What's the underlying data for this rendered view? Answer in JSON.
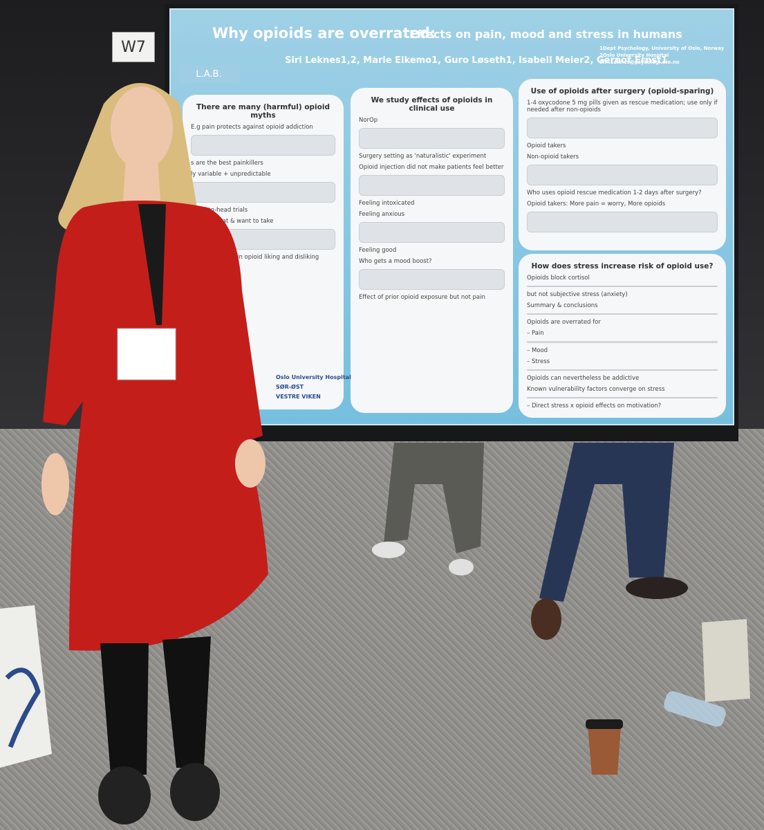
{
  "booth_label": "W7",
  "poster": {
    "title_main": "Why opioids are overrated:",
    "title_sub": "Effects on pain, mood and stress in humans",
    "authors": "Siri Leknes1,2, Marie Eikemo1, Guro Løseth1, Isabell Meier2, Gernot Ernst1",
    "affiliations": [
      "1Dept Psychology, University of Oslo, Norway",
      "2Oslo University Hospital",
      "Siri.Leknes@psykologi.uio.no"
    ],
    "lab_logo": "L.A.B.",
    "panels": [
      {
        "heading": "There are many (harmful) opioid myths",
        "lines": [
          "E.g pain protects against opioid addiction",
          "s are the best painkillers",
          "ly variable + unpredictable",
          "Head-to-head trials",
          "ou feel great & want to take",
          "High variability in opioid liking and disliking"
        ]
      },
      {
        "heading": "We study effects of opioids in clinical use",
        "lines": [
          "NorOp",
          "Surgery setting as 'naturalistic' experiment",
          "Opioid injection did not make patients feel better",
          "Feeling intoxicated",
          "Feeling anxious",
          "Feeling good",
          "Who gets a mood boost?",
          "Effect of prior opioid exposure but not pain"
        ]
      },
      {
        "heading": "Use of opioids after surgery (opioid-sparing)",
        "lines": [
          "1-4 oxycodone 5 mg pills given as rescue medication; use only if needed after non-opioids",
          "Opioid takers",
          "Non-opioid takers",
          "Who uses opioid rescue medication 1-2 days after surgery?",
          "Opioid takers: More pain = worry, More opioids"
        ]
      },
      {
        "heading": "How does stress increase risk of opioid use?",
        "lines": [
          "Opioids block cortisol",
          "but not subjective stress (anxiety)",
          "Summary & conclusions",
          "Opioids are overrated for",
          "– Pain",
          "– Mood",
          "– Stress",
          "Opioids can nevertheless be addictive",
          "Known vulnerability factors converge on stress",
          "– Direct stress x opioid effects on motivation?"
        ]
      }
    ],
    "logos": [
      "Oslo University Hospital",
      "SØR-ØST",
      "VESTRE VIKEN"
    ]
  }
}
